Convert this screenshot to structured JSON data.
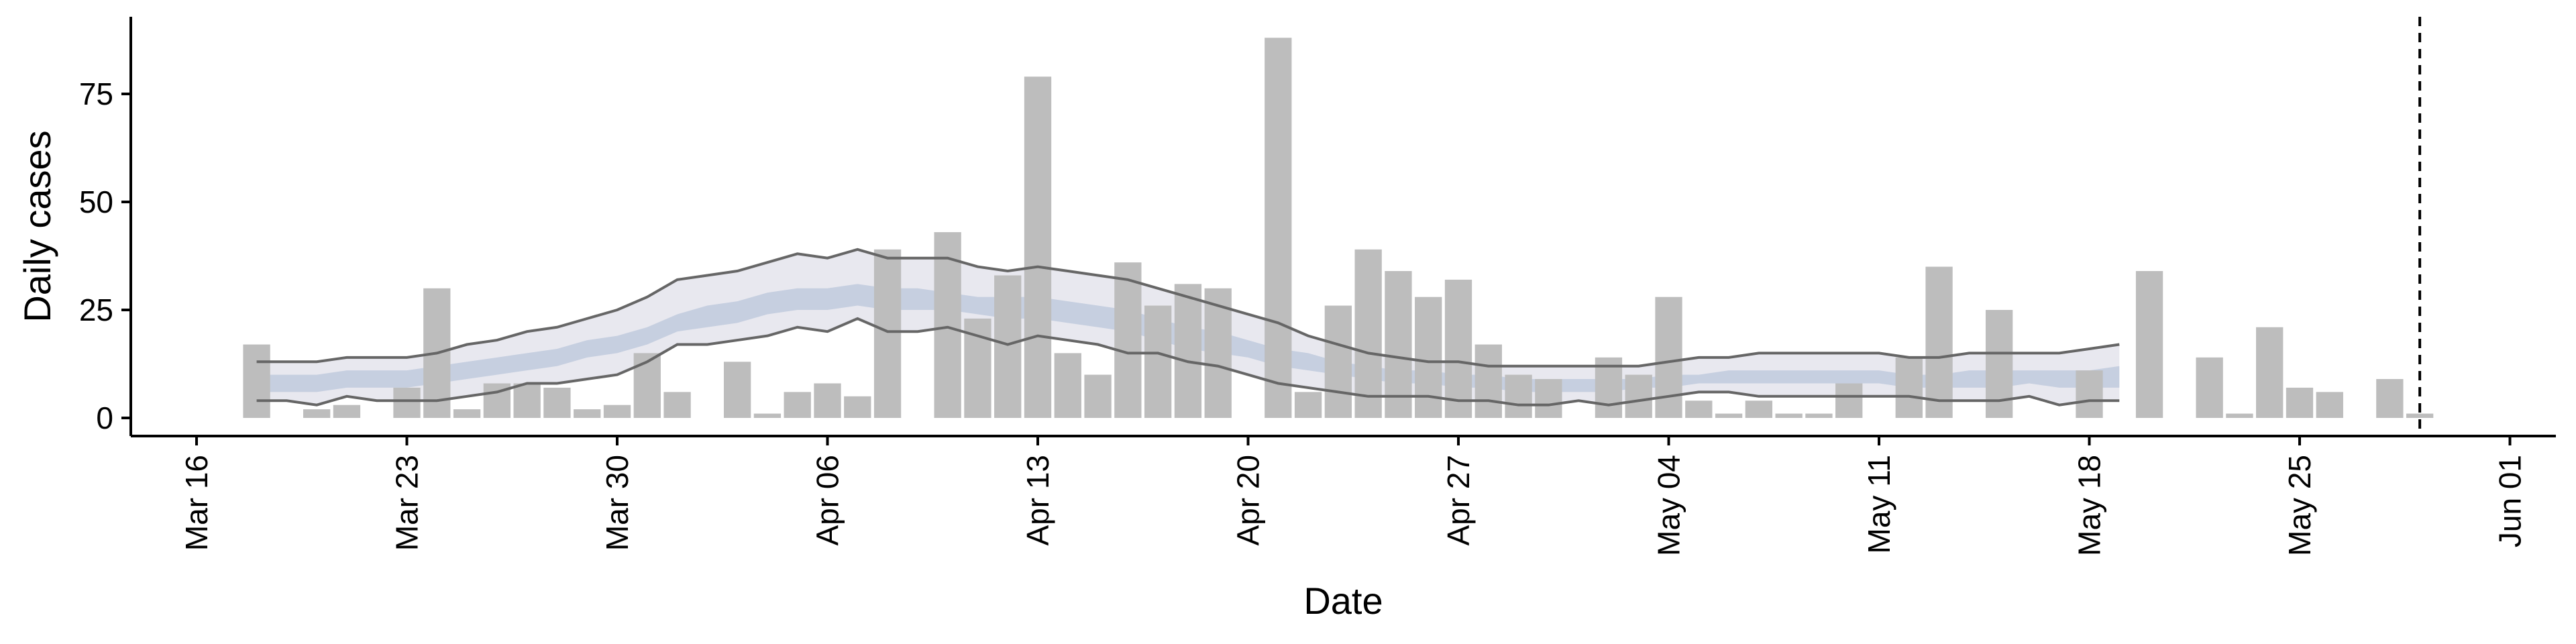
{
  "chart_data": {
    "type": "bar",
    "xlabel": "Date",
    "ylabel": "Daily cases",
    "xlim": [
      "2020-03-16",
      "2020-06-01"
    ],
    "ylim": [
      -4,
      93
    ],
    "y_ticks": [
      0,
      25,
      50,
      75
    ],
    "x_ticks": [
      {
        "date": "2020-03-16",
        "label": "Mar 16"
      },
      {
        "date": "2020-03-23",
        "label": "Mar 23"
      },
      {
        "date": "2020-03-30",
        "label": "Mar 30"
      },
      {
        "date": "2020-04-06",
        "label": "Apr 06"
      },
      {
        "date": "2020-04-13",
        "label": "Apr 13"
      },
      {
        "date": "2020-04-20",
        "label": "Apr 20"
      },
      {
        "date": "2020-04-27",
        "label": "Apr 27"
      },
      {
        "date": "2020-05-04",
        "label": "May 04"
      },
      {
        "date": "2020-05-11",
        "label": "May 11"
      },
      {
        "date": "2020-05-18",
        "label": "May 18"
      },
      {
        "date": "2020-05-25",
        "label": "May 25"
      },
      {
        "date": "2020-06-01",
        "label": "Jun 01"
      }
    ],
    "bars": {
      "color": "#bdbdbd",
      "dates": [
        "2020-03-18",
        "2020-03-19",
        "2020-03-20",
        "2020-03-21",
        "2020-03-22",
        "2020-03-23",
        "2020-03-24",
        "2020-03-25",
        "2020-03-26",
        "2020-03-27",
        "2020-03-28",
        "2020-03-29",
        "2020-03-30",
        "2020-03-31",
        "2020-04-01",
        "2020-04-02",
        "2020-04-03",
        "2020-04-04",
        "2020-04-05",
        "2020-04-06",
        "2020-04-07",
        "2020-04-08",
        "2020-04-09",
        "2020-04-10",
        "2020-04-11",
        "2020-04-12",
        "2020-04-13",
        "2020-04-14",
        "2020-04-15",
        "2020-04-16",
        "2020-04-17",
        "2020-04-18",
        "2020-04-19",
        "2020-04-20",
        "2020-04-21",
        "2020-04-22",
        "2020-04-23",
        "2020-04-24",
        "2020-04-25",
        "2020-04-26",
        "2020-04-27",
        "2020-04-28",
        "2020-04-29",
        "2020-04-30",
        "2020-05-01",
        "2020-05-02",
        "2020-05-03",
        "2020-05-04",
        "2020-05-05",
        "2020-05-06",
        "2020-05-07",
        "2020-05-08",
        "2020-05-09",
        "2020-05-10",
        "2020-05-11",
        "2020-05-12",
        "2020-05-13",
        "2020-05-14",
        "2020-05-15",
        "2020-05-16",
        "2020-05-17",
        "2020-05-18",
        "2020-05-19",
        "2020-05-20",
        "2020-05-21",
        "2020-05-22",
        "2020-05-23",
        "2020-05-24",
        "2020-05-25",
        "2020-05-26",
        "2020-05-27",
        "2020-05-28",
        "2020-05-29"
      ],
      "values": [
        17,
        0,
        2,
        3,
        0,
        7,
        30,
        2,
        8,
        8,
        7,
        2,
        3,
        15,
        6,
        0,
        13,
        1,
        6,
        8,
        5,
        39,
        0,
        43,
        23,
        33,
        79,
        15,
        10,
        36,
        26,
        31,
        30,
        0,
        88,
        6,
        26,
        39,
        34,
        28,
        32,
        17,
        10,
        9,
        0,
        14,
        10,
        28,
        4,
        1,
        4,
        1,
        1,
        8,
        0,
        14,
        35,
        0,
        25,
        0,
        0,
        11,
        0,
        34,
        0,
        14,
        1,
        21,
        7,
        6,
        0,
        9,
        1
      ]
    },
    "ribbon_outer": {
      "color": "#e8e8ef",
      "dates": [
        "2020-03-18",
        "2020-03-19",
        "2020-03-20",
        "2020-03-21",
        "2020-03-22",
        "2020-03-23",
        "2020-03-24",
        "2020-03-25",
        "2020-03-26",
        "2020-03-27",
        "2020-03-28",
        "2020-03-29",
        "2020-03-30",
        "2020-03-31",
        "2020-04-01",
        "2020-04-02",
        "2020-04-03",
        "2020-04-04",
        "2020-04-05",
        "2020-04-06",
        "2020-04-07",
        "2020-04-08",
        "2020-04-09",
        "2020-04-10",
        "2020-04-11",
        "2020-04-12",
        "2020-04-13",
        "2020-04-14",
        "2020-04-15",
        "2020-04-16",
        "2020-04-17",
        "2020-04-18",
        "2020-04-19",
        "2020-04-20",
        "2020-04-21",
        "2020-04-22",
        "2020-04-23",
        "2020-04-24",
        "2020-04-25",
        "2020-04-26",
        "2020-04-27",
        "2020-04-28",
        "2020-04-29",
        "2020-04-30",
        "2020-05-01",
        "2020-05-02",
        "2020-05-03",
        "2020-05-04",
        "2020-05-05",
        "2020-05-06",
        "2020-05-07",
        "2020-05-08",
        "2020-05-09",
        "2020-05-10",
        "2020-05-11",
        "2020-05-12",
        "2020-05-13",
        "2020-05-14",
        "2020-05-15",
        "2020-05-16",
        "2020-05-17",
        "2020-05-18",
        "2020-05-19"
      ],
      "lower": [
        4,
        4,
        3,
        5,
        4,
        4,
        4,
        5,
        6,
        8,
        8,
        9,
        10,
        13,
        17,
        17,
        18,
        19,
        21,
        20,
        23,
        20,
        20,
        21,
        19,
        17,
        19,
        18,
        17,
        15,
        15,
        13,
        12,
        10,
        8,
        7,
        6,
        5,
        5,
        5,
        4,
        4,
        3,
        3,
        4,
        3,
        4,
        5,
        6,
        6,
        5,
        5,
        5,
        5,
        5,
        5,
        4,
        4,
        4,
        5,
        3,
        4,
        4
      ],
      "upper": [
        13,
        13,
        13,
        14,
        14,
        14,
        15,
        17,
        18,
        20,
        21,
        23,
        25,
        28,
        32,
        33,
        34,
        36,
        38,
        37,
        39,
        37,
        37,
        37,
        35,
        34,
        35,
        34,
        33,
        32,
        30,
        28,
        26,
        24,
        22,
        19,
        17,
        15,
        14,
        13,
        13,
        12,
        12,
        12,
        12,
        12,
        12,
        13,
        14,
        14,
        15,
        15,
        15,
        15,
        15,
        14,
        14,
        15,
        15,
        15,
        15,
        16,
        17
      ]
    },
    "ribbon_inner": {
      "color": "#c6cfe0",
      "dates": [
        "2020-03-18",
        "2020-03-19",
        "2020-03-20",
        "2020-03-21",
        "2020-03-22",
        "2020-03-23",
        "2020-03-24",
        "2020-03-25",
        "2020-03-26",
        "2020-03-27",
        "2020-03-28",
        "2020-03-29",
        "2020-03-30",
        "2020-03-31",
        "2020-04-01",
        "2020-04-02",
        "2020-04-03",
        "2020-04-04",
        "2020-04-05",
        "2020-04-06",
        "2020-04-07",
        "2020-04-08",
        "2020-04-09",
        "2020-04-10",
        "2020-04-11",
        "2020-04-12",
        "2020-04-13",
        "2020-04-14",
        "2020-04-15",
        "2020-04-16",
        "2020-04-17",
        "2020-04-18",
        "2020-04-19",
        "2020-04-20",
        "2020-04-21",
        "2020-04-22",
        "2020-04-23",
        "2020-04-24",
        "2020-04-25",
        "2020-04-26",
        "2020-04-27",
        "2020-04-28",
        "2020-04-29",
        "2020-04-30",
        "2020-05-01",
        "2020-05-02",
        "2020-05-03",
        "2020-05-04",
        "2020-05-05",
        "2020-05-06",
        "2020-05-07",
        "2020-05-08",
        "2020-05-09",
        "2020-05-10",
        "2020-05-11",
        "2020-05-12",
        "2020-05-13",
        "2020-05-14",
        "2020-05-15",
        "2020-05-16",
        "2020-05-17",
        "2020-05-18",
        "2020-05-19"
      ],
      "lower": [
        6,
        6,
        6,
        7,
        7,
        7,
        8,
        9,
        10,
        11,
        12,
        14,
        15,
        17,
        20,
        21,
        22,
        24,
        25,
        25,
        26,
        25,
        25,
        25,
        24,
        23,
        23,
        22,
        21,
        20,
        18,
        16,
        15,
        14,
        12,
        11,
        10,
        9,
        8,
        8,
        7,
        7,
        6,
        6,
        6,
        6,
        7,
        7,
        8,
        8,
        8,
        8,
        8,
        8,
        8,
        7,
        7,
        7,
        7,
        8,
        7,
        7,
        7
      ],
      "upper": [
        10,
        10,
        10,
        11,
        11,
        11,
        12,
        13,
        14,
        15,
        16,
        18,
        19,
        21,
        24,
        26,
        27,
        29,
        30,
        30,
        31,
        30,
        30,
        29,
        28,
        28,
        28,
        27,
        26,
        25,
        23,
        21,
        20,
        18,
        16,
        15,
        13,
        12,
        11,
        11,
        10,
        10,
        9,
        9,
        9,
        9,
        9,
        10,
        10,
        11,
        11,
        11,
        11,
        11,
        11,
        10,
        10,
        11,
        11,
        11,
        11,
        11,
        12
      ]
    },
    "quantile_lines": {
      "color": "#666666",
      "dates": [
        "2020-03-18",
        "2020-03-19",
        "2020-03-20",
        "2020-03-21",
        "2020-03-22",
        "2020-03-23",
        "2020-03-24",
        "2020-03-25",
        "2020-03-26",
        "2020-03-27",
        "2020-03-28",
        "2020-03-29",
        "2020-03-30",
        "2020-03-31",
        "2020-04-01",
        "2020-04-02",
        "2020-04-03",
        "2020-04-04",
        "2020-04-05",
        "2020-04-06",
        "2020-04-07",
        "2020-04-08",
        "2020-04-09",
        "2020-04-10",
        "2020-04-11",
        "2020-04-12",
        "2020-04-13",
        "2020-04-14",
        "2020-04-15",
        "2020-04-16",
        "2020-04-17",
        "2020-04-18",
        "2020-04-19",
        "2020-04-20",
        "2020-04-21",
        "2020-04-22",
        "2020-04-23",
        "2020-04-24",
        "2020-04-25",
        "2020-04-26",
        "2020-04-27",
        "2020-04-28",
        "2020-04-29",
        "2020-04-30",
        "2020-05-01",
        "2020-05-02",
        "2020-05-03",
        "2020-05-04",
        "2020-05-05",
        "2020-05-06",
        "2020-05-07",
        "2020-05-08",
        "2020-05-09",
        "2020-05-10",
        "2020-05-11",
        "2020-05-12",
        "2020-05-13",
        "2020-05-14",
        "2020-05-15",
        "2020-05-16",
        "2020-05-17",
        "2020-05-18",
        "2020-05-19"
      ],
      "lower": [
        4,
        4,
        3,
        5,
        4,
        4,
        4,
        5,
        6,
        8,
        8,
        9,
        10,
        13,
        17,
        17,
        18,
        19,
        21,
        20,
        23,
        20,
        20,
        21,
        19,
        17,
        19,
        18,
        17,
        15,
        15,
        13,
        12,
        10,
        8,
        7,
        6,
        5,
        5,
        5,
        4,
        4,
        3,
        3,
        4,
        3,
        4,
        5,
        6,
        6,
        5,
        5,
        5,
        5,
        5,
        5,
        4,
        4,
        4,
        5,
        3,
        4,
        4
      ],
      "upper": [
        13,
        13,
        13,
        14,
        14,
        14,
        15,
        17,
        18,
        20,
        21,
        23,
        25,
        28,
        32,
        33,
        34,
        36,
        38,
        37,
        39,
        37,
        37,
        37,
        35,
        34,
        35,
        34,
        33,
        32,
        30,
        28,
        26,
        24,
        22,
        19,
        17,
        15,
        14,
        13,
        13,
        12,
        12,
        12,
        12,
        12,
        12,
        13,
        14,
        14,
        15,
        15,
        15,
        15,
        15,
        14,
        14,
        15,
        15,
        15,
        15,
        16,
        17
      ]
    },
    "vline_date": "2020-05-29",
    "grid": false,
    "legend": "none"
  }
}
